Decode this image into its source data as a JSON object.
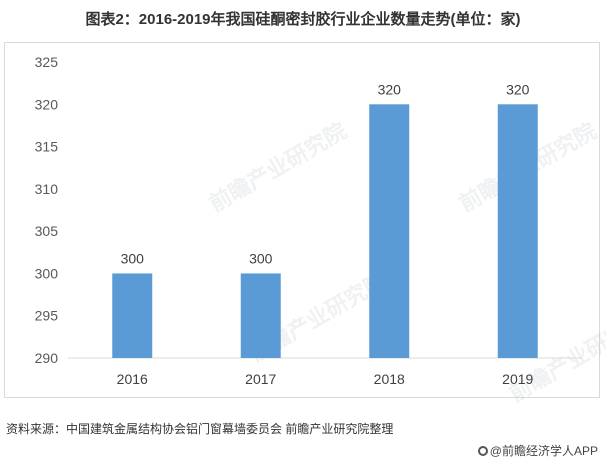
{
  "title": "图表2：2016-2019年我国硅酮密封胶行业企业数量走势(单位：家)",
  "source": "资料来源：中国建筑金属结构协会铝门窗幕墙委员会 前瞻产业研究院整理",
  "brand": "@前瞻经济学人APP",
  "watermark": "前瞻产业研究院",
  "chart_data": {
    "type": "bar",
    "categories": [
      "2016",
      "2017",
      "2018",
      "2019"
    ],
    "values": [
      300,
      300,
      320,
      320
    ],
    "data_labels": [
      "300",
      "300",
      "320",
      "320"
    ],
    "title": "",
    "xlabel": "",
    "ylabel": "",
    "ylim": [
      290,
      325
    ],
    "yticks": [
      290,
      295,
      300,
      305,
      310,
      315,
      320,
      325
    ],
    "grid": false,
    "legend": "none",
    "bar_color": "#5b9bd5"
  }
}
